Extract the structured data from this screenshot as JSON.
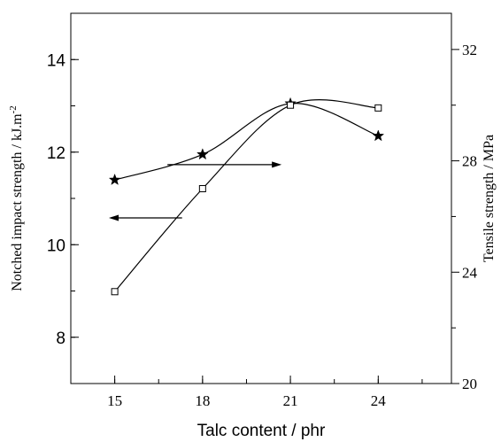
{
  "chart_data": {
    "type": "line",
    "xlabel": "Talc content / phr",
    "ylabel_left": "Notched impact strength / kJ.m",
    "ylabel_left_superscript": "-2",
    "ylabel_right": "Tensile strength / MPa",
    "x_ticks": [
      "15",
      "18",
      "21",
      "24"
    ],
    "xlim": [
      13.5,
      26.5
    ],
    "ylim_left": [
      7,
      15
    ],
    "yticks_left": [
      "8",
      "10",
      "12",
      "14"
    ],
    "ylim_right": [
      20,
      33.3
    ],
    "yticks_right": [
      "20",
      "24",
      "28",
      "32"
    ],
    "series": [
      {
        "marker": "star",
        "axis": "left",
        "x": [
          15,
          18,
          21,
          24
        ],
        "y": [
          11.4,
          11.95,
          13.05,
          12.35
        ]
      },
      {
        "marker": "square",
        "axis": "right",
        "x": [
          15,
          18,
          21,
          24
        ],
        "y": [
          23.3,
          27.0,
          30.0,
          29.9
        ]
      }
    ],
    "annotations": [
      {
        "type": "arrow",
        "direction": "right",
        "indicates": "right axis"
      },
      {
        "type": "arrow",
        "direction": "left",
        "indicates": "left axis"
      }
    ],
    "grid": false,
    "legend": "none",
    "colors": {
      "line": "#000000",
      "background": "#ffffff"
    }
  }
}
